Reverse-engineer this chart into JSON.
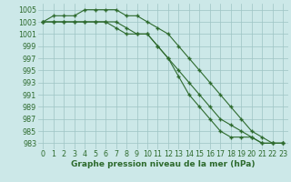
{
  "x": [
    0,
    1,
    2,
    3,
    4,
    5,
    6,
    7,
    8,
    9,
    10,
    11,
    12,
    13,
    14,
    15,
    16,
    17,
    18,
    19,
    20,
    21,
    22,
    23
  ],
  "line_top": [
    1003,
    1004,
    1004,
    1004,
    1005,
    1005,
    1005,
    1005,
    1004,
    1004,
    1003,
    1002,
    1001,
    999,
    997,
    995,
    993,
    991,
    989,
    987,
    985,
    984,
    983,
    983
  ],
  "line_mid": [
    1003,
    1003,
    1003,
    1003,
    1003,
    1003,
    1003,
    1003,
    1002,
    1001,
    1001,
    999,
    997,
    995,
    993,
    991,
    989,
    987,
    986,
    985,
    984,
    983,
    983,
    983
  ],
  "line_bot": [
    1003,
    1003,
    1003,
    1003,
    1003,
    1003,
    1003,
    1002,
    1001,
    1001,
    1001,
    999,
    997,
    994,
    991,
    989,
    987,
    985,
    984,
    984,
    984,
    983,
    983,
    983
  ],
  "ylim_min": 982,
  "ylim_max": 1006,
  "yticks": [
    983,
    985,
    987,
    989,
    991,
    993,
    995,
    997,
    999,
    1001,
    1003,
    1005
  ],
  "line_color": "#2d6a2d",
  "bg_color": "#cce8e8",
  "grid_color": "#9ec4c4",
  "xlabel": "Graphe pression niveau de la mer (hPa)",
  "xlabel_fontsize": 6.5,
  "tick_fontsize": 5.8,
  "marker": "+",
  "marker_size": 3.5,
  "linewidth": 0.8
}
